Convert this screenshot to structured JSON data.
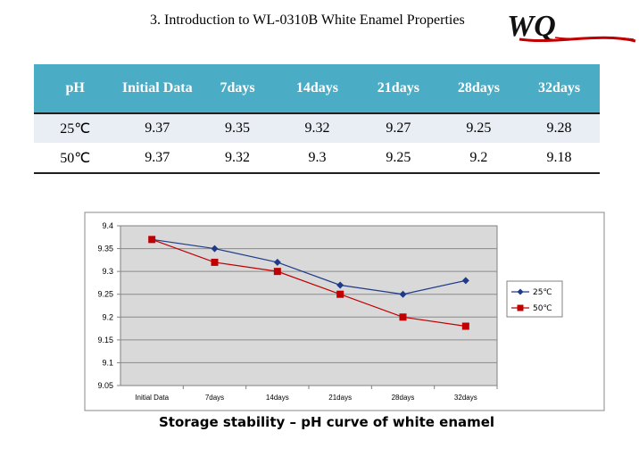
{
  "header": {
    "title": "3. Introduction to WL-0310B White Enamel Properties",
    "logo_text": "WQ"
  },
  "table": {
    "columns": [
      "pH",
      "Initial Data",
      "7days",
      "14days",
      "21days",
      "28days",
      "32days"
    ],
    "rows": [
      {
        "label": "25℃",
        "values": [
          "9.37",
          "9.35",
          "9.32",
          "9.27",
          "9.25",
          "9.28"
        ]
      },
      {
        "label": "50℃",
        "values": [
          "9.37",
          "9.32",
          "9.3",
          "9.25",
          "9.2",
          "9.18"
        ]
      }
    ]
  },
  "chart_data": {
    "type": "line",
    "title": "Storage stability – pH  curve of white enamel",
    "categories": [
      "Initial Data",
      "7days",
      "14days",
      "21days",
      "28days",
      "32days"
    ],
    "series": [
      {
        "name": "25℃",
        "values": [
          9.37,
          9.35,
          9.32,
          9.27,
          9.25,
          9.28
        ],
        "color": "#1f3a8a",
        "marker": "diamond"
      },
      {
        "name": "50℃",
        "values": [
          9.37,
          9.32,
          9.3,
          9.25,
          9.2,
          9.18
        ],
        "color": "#c00000",
        "marker": "square"
      }
    ],
    "ylim": [
      9.05,
      9.4
    ],
    "yticks": [
      "9.05",
      "9.1",
      "9.15",
      "9.2",
      "9.25",
      "9.3",
      "9.35",
      "9.4"
    ],
    "grid": true,
    "legend": "right",
    "plot_background": "#d9d9d9"
  },
  "colors": {
    "table_header": "#4bacc6",
    "row_shade": "#e9edf4"
  }
}
